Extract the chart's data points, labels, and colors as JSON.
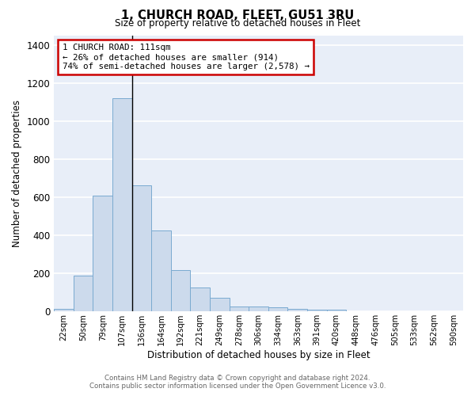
{
  "title": "1, CHURCH ROAD, FLEET, GU51 3RU",
  "subtitle": "Size of property relative to detached houses in Fleet",
  "xlabel": "Distribution of detached houses by size in Fleet",
  "ylabel": "Number of detached properties",
  "categories": [
    "22sqm",
    "50sqm",
    "79sqm",
    "107sqm",
    "136sqm",
    "164sqm",
    "192sqm",
    "221sqm",
    "249sqm",
    "278sqm",
    "306sqm",
    "334sqm",
    "363sqm",
    "391sqm",
    "420sqm",
    "448sqm",
    "476sqm",
    "505sqm",
    "533sqm",
    "562sqm",
    "590sqm"
  ],
  "values": [
    15,
    190,
    610,
    1120,
    665,
    425,
    218,
    128,
    73,
    28,
    25,
    20,
    13,
    10,
    10,
    0,
    0,
    0,
    0,
    0,
    0
  ],
  "bar_color": "#ccdaec",
  "bar_edge_color": "#7aaad0",
  "annotation_text_line1": "1 CHURCH ROAD: 111sqm",
  "annotation_text_line2": "← 26% of detached houses are smaller (914)",
  "annotation_text_line3": "74% of semi-detached houses are larger (2,578) →",
  "annotation_box_color": "white",
  "annotation_box_edge_color": "#cc0000",
  "vertical_line_x": 3.5,
  "ylim": [
    0,
    1450
  ],
  "yticks": [
    0,
    200,
    400,
    600,
    800,
    1000,
    1200,
    1400
  ],
  "background_color": "#e8eef8",
  "grid_color": "white",
  "footer_line1": "Contains HM Land Registry data © Crown copyright and database right 2024.",
  "footer_line2": "Contains public sector information licensed under the Open Government Licence v3.0."
}
